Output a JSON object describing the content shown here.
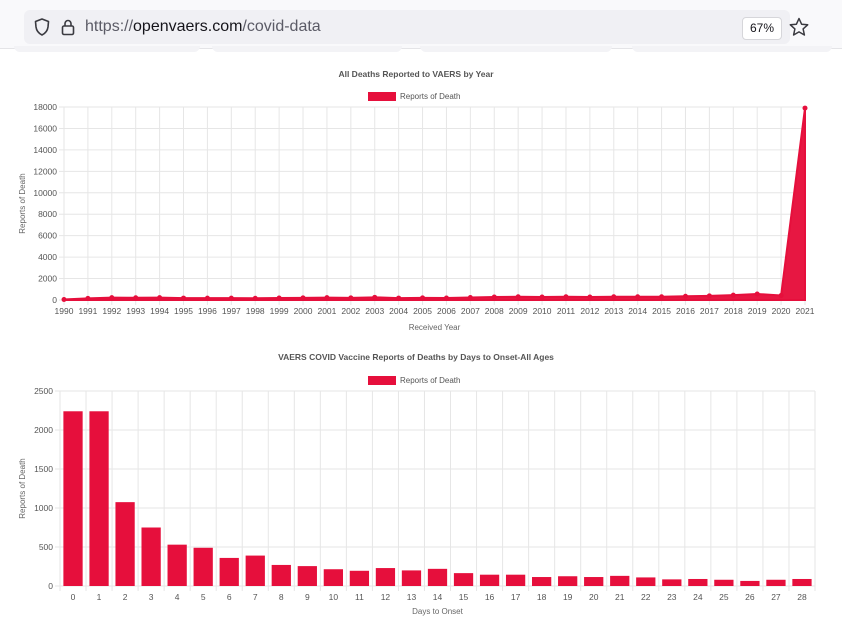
{
  "browser": {
    "url_scheme": "https://",
    "url_host": "openvaers.com",
    "url_path": "/covid-data",
    "zoom": "67%",
    "icons": [
      "shield-icon",
      "lock-icon",
      "star-icon"
    ]
  },
  "colors": {
    "series": "#e60f3c"
  },
  "chart_data": [
    {
      "type": "area",
      "title": "All Deaths Reported to VAERS by Year",
      "legend": "Reports of Death",
      "legend_position": "top-center",
      "xlabel": "Received Year",
      "ylabel": "Reports of Death",
      "ylim": [
        0,
        18000
      ],
      "yticks": [
        0,
        2000,
        4000,
        6000,
        8000,
        10000,
        12000,
        14000,
        16000,
        18000
      ],
      "grid": true,
      "categories": [
        "1990",
        "1991",
        "1992",
        "1993",
        "1994",
        "1995",
        "1996",
        "1997",
        "1998",
        "1999",
        "2000",
        "2001",
        "2002",
        "2003",
        "2004",
        "2005",
        "2006",
        "2007",
        "2008",
        "2009",
        "2010",
        "2011",
        "2012",
        "2013",
        "2014",
        "2015",
        "2016",
        "2017",
        "2018",
        "2019",
        "2020",
        "2021"
      ],
      "series": [
        {
          "name": "Reports of Death",
          "values": [
            50,
            150,
            220,
            210,
            220,
            180,
            170,
            170,
            160,
            190,
            200,
            220,
            200,
            250,
            180,
            200,
            190,
            230,
            280,
            300,
            280,
            300,
            280,
            300,
            300,
            300,
            350,
            380,
            450,
            560,
            420,
            17900
          ]
        }
      ]
    },
    {
      "type": "bar",
      "title": "VAERS COVID Vaccine Reports of Deaths by Days to Onset-All Ages",
      "legend": "Reports of Death",
      "legend_position": "top-center",
      "xlabel": "Days to Onset",
      "ylabel": "Reports of Death",
      "ylim": [
        0,
        2500
      ],
      "yticks": [
        0,
        500,
        1000,
        1500,
        2000,
        2500
      ],
      "grid": true,
      "categories": [
        "0",
        "1",
        "2",
        "3",
        "4",
        "5",
        "6",
        "7",
        "8",
        "9",
        "10",
        "11",
        "12",
        "13",
        "14",
        "15",
        "16",
        "17",
        "18",
        "19",
        "20",
        "21",
        "22",
        "23",
        "24",
        "25",
        "26",
        "27",
        "28"
      ],
      "series": [
        {
          "name": "Reports of Death",
          "values": [
            2240,
            2240,
            1075,
            750,
            530,
            490,
            360,
            390,
            270,
            255,
            215,
            195,
            230,
            200,
            220,
            165,
            145,
            145,
            115,
            125,
            115,
            130,
            110,
            85,
            90,
            80,
            65,
            80,
            90
          ]
        }
      ]
    }
  ]
}
